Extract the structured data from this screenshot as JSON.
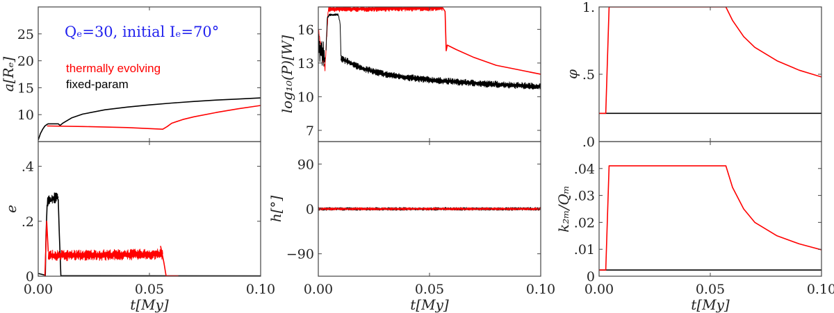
{
  "colors": {
    "thermal": "#ff0000",
    "fixed": "#000000",
    "title": "#2222ee"
  },
  "chart_data": [
    {
      "id": "a",
      "type": "line",
      "ylabel": "a[Rₑ]",
      "xlabel": "",
      "xlim": [
        0,
        0.1
      ],
      "ylim": [
        5,
        30
      ],
      "yticks": [
        10,
        15,
        20,
        25
      ],
      "ytick_labels": [
        "10",
        "15",
        "20",
        "25"
      ],
      "annotations": {
        "title": "Qₑ=30,  initial Iₑ=70°",
        "legend": [
          "thermally evolving",
          "fixed-param"
        ]
      },
      "series": [
        {
          "name": "fixed-param",
          "color": "#000000",
          "jitter": 0,
          "points": [
            [
              0,
              5.3
            ],
            [
              0.001,
              6.5
            ],
            [
              0.002,
              7.3
            ],
            [
              0.003,
              7.9
            ],
            [
              0.004,
              8.2
            ],
            [
              0.0045,
              8.3
            ],
            [
              0.009,
              8.3
            ],
            [
              0.0098,
              8.0
            ],
            [
              0.011,
              8.4
            ],
            [
              0.015,
              9.4
            ],
            [
              0.02,
              10.1
            ],
            [
              0.03,
              10.9
            ],
            [
              0.04,
              11.4
            ],
            [
              0.05,
              11.8
            ],
            [
              0.06,
              12.15
            ],
            [
              0.07,
              12.45
            ],
            [
              0.08,
              12.7
            ],
            [
              0.09,
              12.9
            ],
            [
              0.1,
              13.1
            ]
          ]
        },
        {
          "name": "thermally evolving",
          "color": "#ff0000",
          "jitter": 0,
          "points": [
            [
              0.004,
              7.9
            ],
            [
              0.02,
              7.8
            ],
            [
              0.04,
              7.6
            ],
            [
              0.056,
              7.3
            ],
            [
              0.058,
              7.8
            ],
            [
              0.06,
              8.4
            ],
            [
              0.065,
              9.1
            ],
            [
              0.07,
              9.6
            ],
            [
              0.08,
              10.4
            ],
            [
              0.09,
              11.1
            ],
            [
              0.1,
              11.7
            ]
          ]
        }
      ]
    },
    {
      "id": "logP",
      "type": "line",
      "ylabel": "log₁₀(P)[W]",
      "xlabel": "",
      "xlim": [
        0,
        0.1
      ],
      "ylim": [
        6,
        18
      ],
      "yticks": [
        7,
        10,
        13,
        16
      ],
      "ytick_labels": [
        "7",
        "10",
        "13",
        "16"
      ],
      "series": [
        {
          "name": "thermally evolving",
          "color": "#ff0000",
          "jitter": 0.25,
          "points": [
            [
              0,
              16
            ],
            [
              0.0015,
              14
            ],
            [
              0.003,
              12.5
            ],
            [
              0.0035,
              14.5
            ],
            [
              0.0045,
              17.8
            ],
            [
              0.056,
              17.9
            ]
          ]
        },
        {
          "name": "thermally evolving",
          "color": "#ff0000",
          "jitter": 0,
          "points": [
            [
              0.056,
              17.9
            ],
            [
              0.057,
              17.6
            ],
            [
              0.0575,
              14.1
            ],
            [
              0.058,
              14.6
            ],
            [
              0.062,
              14.2
            ],
            [
              0.07,
              13.5
            ],
            [
              0.08,
              12.8
            ],
            [
              0.09,
              12.4
            ],
            [
              0.1,
              12.0
            ]
          ]
        },
        {
          "name": "fixed-param",
          "color": "#000000",
          "jitter": 1.2,
          "points": [
            [
              0,
              14.5
            ],
            [
              0.003,
              13.5
            ]
          ]
        },
        {
          "name": "fixed-param",
          "color": "#000000",
          "jitter": 0.1,
          "points": [
            [
              0.0035,
              14.2
            ],
            [
              0.004,
              17.0
            ],
            [
              0.005,
              17.3
            ],
            [
              0.009,
              17.3
            ],
            [
              0.0098,
              16.5
            ],
            [
              0.0102,
              13.6
            ]
          ]
        },
        {
          "name": "fixed-param",
          "color": "#000000",
          "jitter": 0.3,
          "points": [
            [
              0.0102,
              13.4
            ],
            [
              0.02,
              12.5
            ],
            [
              0.03,
              12.0
            ],
            [
              0.04,
              11.7
            ],
            [
              0.05,
              11.5
            ],
            [
              0.06,
              11.35
            ],
            [
              0.07,
              11.2
            ],
            [
              0.08,
              11.1
            ],
            [
              0.09,
              11.0
            ],
            [
              0.1,
              10.9
            ]
          ]
        }
      ]
    },
    {
      "id": "phi",
      "type": "line",
      "ylabel": "φ",
      "xlabel": "",
      "xlim": [
        0,
        0.1
      ],
      "ylim": [
        0,
        1
      ],
      "yticks": [
        0,
        0.5,
        1
      ],
      "ytick_labels": [
        ".0",
        ".5",
        "1."
      ],
      "series": [
        {
          "name": "fixed-param",
          "color": "#000000",
          "jitter": 0,
          "points": [
            [
              0,
              0.21
            ],
            [
              0.1,
              0.21
            ]
          ]
        },
        {
          "name": "thermally evolving",
          "color": "#ff0000",
          "jitter": 0,
          "points": [
            [
              0,
              0.21
            ],
            [
              0.003,
              0.21
            ],
            [
              0.0045,
              1.0
            ],
            [
              0.057,
              1.0
            ],
            [
              0.06,
              0.9
            ],
            [
              0.065,
              0.78
            ],
            [
              0.07,
              0.7
            ],
            [
              0.08,
              0.6
            ],
            [
              0.09,
              0.53
            ],
            [
              0.1,
              0.48
            ]
          ]
        }
      ]
    },
    {
      "id": "e",
      "type": "line",
      "ylabel": "e",
      "xlabel": "t[My]",
      "xlim": [
        0,
        0.1
      ],
      "ylim": [
        0,
        0.49
      ],
      "xticks": [
        0,
        0.05,
        0.1
      ],
      "xtick_labels": [
        "0.00",
        "0.05",
        "0.10"
      ],
      "yticks": [
        0,
        0.2,
        0.4
      ],
      "ytick_labels": [
        "0",
        ".2",
        ".4"
      ],
      "series": [
        {
          "name": "fixed-param",
          "color": "#000000",
          "jitter": 0,
          "points": [
            [
              0,
              0.01
            ],
            [
              0.003,
              0.004
            ],
            [
              0.0032,
              0.0
            ],
            [
              0.0035,
              0.15
            ],
            [
              0.004,
              0.26
            ]
          ]
        },
        {
          "name": "fixed-param",
          "color": "#000000",
          "jitter": 0.02,
          "points": [
            [
              0.004,
              0.27
            ],
            [
              0.006,
              0.28
            ],
            [
              0.009,
              0.29
            ]
          ]
        },
        {
          "name": "fixed-param",
          "color": "#000000",
          "jitter": 0,
          "points": [
            [
              0.009,
              0.28
            ],
            [
              0.0095,
              0.15
            ],
            [
              0.0102,
              0.002
            ],
            [
              0.1,
              0.001
            ]
          ]
        },
        {
          "name": "thermally evolving",
          "color": "#ff0000",
          "jitter": 0,
          "points": [
            [
              0.003,
              0.0
            ],
            [
              0.0038,
              0.2
            ],
            [
              0.0045,
              0.09
            ]
          ]
        },
        {
          "name": "thermally evolving",
          "color": "#ff0000",
          "jitter": 0.02,
          "points": [
            [
              0.0045,
              0.075
            ],
            [
              0.056,
              0.08
            ]
          ]
        },
        {
          "name": "thermally evolving",
          "color": "#ff0000",
          "jitter": 0,
          "points": [
            [
              0.055,
              0.11
            ],
            [
              0.0565,
              0.05
            ],
            [
              0.0575,
              0.001
            ],
            [
              0.063,
              0.001
            ]
          ]
        }
      ]
    },
    {
      "id": "h",
      "type": "scatter",
      "ylabel": "h[°]",
      "xlabel": "t[My]",
      "xlim": [
        0,
        0.1
      ],
      "ylim": [
        -135,
        135
      ],
      "xticks": [
        0,
        0.05,
        0.1
      ],
      "xtick_labels": [
        "0.00",
        "0.05",
        "0.10"
      ],
      "yticks": [
        -90,
        0,
        90
      ],
      "ytick_labels": [
        "−90",
        "0",
        "90"
      ],
      "series": [
        {
          "name": "fixed-param",
          "color": "#000000",
          "jitter": 3,
          "points": [
            [
              0,
              0
            ],
            [
              0.1,
              0
            ]
          ]
        },
        {
          "name": "thermally evolving",
          "color": "#ff0000",
          "jitter": 2.5,
          "points": [
            [
              0,
              0
            ],
            [
              0.1,
              0
            ]
          ]
        }
      ]
    },
    {
      "id": "k2Q",
      "type": "line",
      "ylabel": "k₂ₘ/Qₘ",
      "xlabel": "t[My]",
      "xlim": [
        0,
        0.1
      ],
      "ylim": [
        0,
        0.05
      ],
      "xticks": [
        0,
        0.05,
        0.1
      ],
      "xtick_labels": [
        "0.00",
        "0.05",
        "0.10"
      ],
      "yticks": [
        0,
        0.01,
        0.02,
        0.03,
        0.04
      ],
      "ytick_labels": [
        "0",
        ".01",
        ".02",
        ".03",
        ".04"
      ],
      "series": [
        {
          "name": "fixed-param",
          "color": "#000000",
          "jitter": 0,
          "points": [
            [
              0,
              0.0023
            ],
            [
              0.1,
              0.0023
            ]
          ]
        },
        {
          "name": "thermally evolving",
          "color": "#ff0000",
          "jitter": 0,
          "points": [
            [
              0,
              0.0023
            ],
            [
              0.003,
              0.0023
            ],
            [
              0.0045,
              0.041
            ],
            [
              0.057,
              0.041
            ],
            [
              0.06,
              0.033
            ],
            [
              0.065,
              0.025
            ],
            [
              0.07,
              0.02
            ],
            [
              0.08,
              0.015
            ],
            [
              0.09,
              0.012
            ],
            [
              0.1,
              0.0098
            ]
          ]
        }
      ]
    }
  ]
}
